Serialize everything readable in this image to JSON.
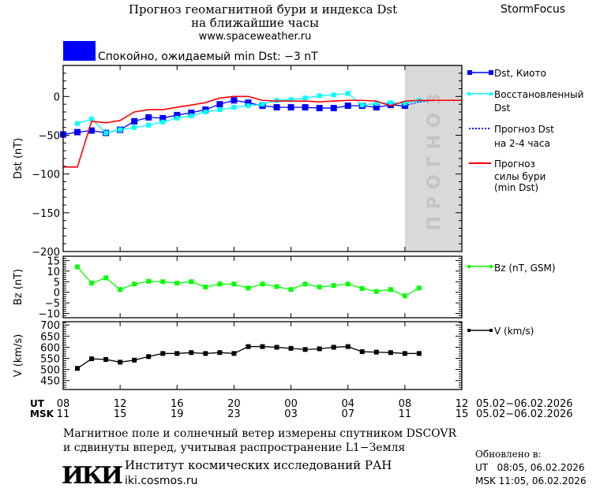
{
  "header": {
    "title_line1": "Прогноз геомагнитной бури и индекса Dst",
    "title_line2": "на ближайшие часы",
    "site": "www.spaceweather.ru",
    "brand": "StormFocus",
    "status_text": "Спокойно, ожидаемый min Dst: −3 nT",
    "status_color": "#0000ff"
  },
  "legend": {
    "dst_kyoto": "Dst, Киото",
    "reconstructed_1": "Восстановленный",
    "reconstructed_2": "Dst",
    "forecast_1": "Прогноз Dst",
    "forecast_2": "на 2-4 часа",
    "storm_1": "Прогноз",
    "storm_2": "силы бури",
    "storm_3": "(min Dst)",
    "bz": "Bz (nT, GSM)",
    "v": "V (km/s)"
  },
  "forecast_zone_label": "ПРОГНОЗ",
  "x_axis": {
    "ut_label": "UT",
    "msk_label": "MSK",
    "ut_ticks": [
      "08",
      "12",
      "16",
      "20",
      "00",
      "04",
      "08",
      "12"
    ],
    "msk_ticks": [
      "11",
      "15",
      "19",
      "23",
      "03",
      "07",
      "11",
      "15"
    ],
    "ut_range": "05.02−06.02.2026",
    "msk_range": "05.02−06.02.2026"
  },
  "footer": {
    "note_line1": "Магнитное поле и солнечный ветер измерены спутником DSCOVR",
    "note_line2": "и сдвинуты вперед, учитывая распространение L1−Земля",
    "institute": "Институт космических исследований РАН",
    "institute_url": "iki.cosmos.ru",
    "logo_text": "ИКИ",
    "updated_label": "Обновлено в:",
    "updated_ut": "UT   08:05, 06.02.2026",
    "updated_msk": "MSK 11:05, 06.02.2026"
  },
  "chart_data": [
    {
      "type": "line",
      "ylabel": "Dst (nT)",
      "ylim": [
        -200,
        40
      ],
      "yticks": [
        "0",
        "−50",
        "−100",
        "−150",
        "−200"
      ],
      "x_unit": "hours from 05.02 08 UT",
      "xlim": [
        0,
        28
      ],
      "forecast_zone": [
        24,
        28
      ],
      "series": [
        {
          "name": "Dst, Киото",
          "color": "#0000ff",
          "marker": "square-large",
          "x": [
            0,
            1,
            2,
            3,
            4,
            5,
            6,
            7,
            8,
            9,
            10,
            11,
            12,
            13,
            14,
            15,
            16,
            17,
            18,
            19,
            20,
            21,
            22,
            23,
            24
          ],
          "y": [
            -49,
            -46,
            -44,
            -47,
            -43,
            -32,
            -27,
            -28,
            -24,
            -21,
            -17,
            -10,
            -5,
            -8,
            -12,
            -14,
            -14,
            -14,
            -15,
            -15,
            -12,
            -12,
            -14,
            -11,
            -12
          ]
        },
        {
          "name": "Восстановленный Dst",
          "color": "#00ffff",
          "marker": "square-small",
          "x": [
            1,
            2,
            3,
            4,
            5,
            6,
            7,
            8,
            9,
            10,
            11,
            12,
            13,
            14,
            15,
            16,
            17,
            18,
            19,
            20,
            21,
            22,
            23,
            24,
            25
          ],
          "y": [
            -35,
            -29,
            -47,
            -43,
            -40,
            -37,
            -33,
            -28,
            -25,
            -20,
            -17,
            -14,
            -12,
            -10,
            -5,
            -4,
            -2,
            1,
            2,
            4,
            -11,
            -9,
            -8,
            -9,
            -5
          ]
        },
        {
          "name": "Прогноз Dst на 2-4 часа",
          "color": "#0000ff",
          "style": "dotted",
          "x": [
            24,
            25,
            26,
            27.5
          ],
          "y": [
            -12,
            -7,
            -5,
            -5
          ]
        },
        {
          "name": "Прогноз силы бури (min Dst)",
          "color": "#ff0000",
          "x": [
            0,
            1,
            2,
            3,
            4,
            5,
            6,
            7,
            8,
            9,
            10,
            11,
            12,
            13,
            14,
            15,
            16,
            17,
            18,
            19,
            20,
            21,
            22,
            23,
            24,
            25,
            26,
            27,
            28
          ],
          "y": [
            -91,
            -91,
            -32,
            -34,
            -31,
            -20,
            -17,
            -17,
            -14,
            -11,
            -8,
            -2,
            0,
            0,
            -5,
            -6,
            -6,
            -6,
            -7,
            -6,
            -5,
            -5,
            -6,
            -12,
            -6,
            -5,
            -5,
            -5,
            -5
          ]
        }
      ]
    },
    {
      "type": "line",
      "ylabel": "Bz (nT)",
      "ylim": [
        -12,
        17
      ],
      "yticks": [
        "15",
        "10",
        "5",
        "0",
        "−5",
        "−10"
      ],
      "series": [
        {
          "name": "Bz (nT, GSM)",
          "color": "#00ff00",
          "x": [
            1,
            2,
            3,
            4,
            5,
            6,
            7,
            8,
            9,
            10,
            11,
            12,
            13,
            14,
            15,
            16,
            17,
            18,
            19,
            20,
            21,
            22,
            23,
            24,
            25
          ],
          "y": [
            12,
            4.3,
            6.8,
            1.3,
            3.9,
            5.2,
            5,
            4.3,
            5,
            2.5,
            3.9,
            3.9,
            2,
            3.9,
            2.7,
            1.3,
            3.9,
            2.5,
            3.2,
            3.9,
            1.8,
            0.4,
            1.3,
            -1.7,
            2
          ]
        }
      ]
    },
    {
      "type": "line",
      "ylabel": "V (km/s)",
      "ylim": [
        410,
        715
      ],
      "yticks": [
        "700",
        "650",
        "600",
        "550",
        "500",
        "450"
      ],
      "series": [
        {
          "name": "V (km/s)",
          "color": "#000000",
          "x": [
            1,
            2,
            3,
            4,
            5,
            6,
            7,
            8,
            9,
            10,
            11,
            12,
            13,
            14,
            15,
            16,
            17,
            18,
            19,
            20,
            21,
            22,
            23,
            24,
            25
          ],
          "y": [
            505,
            548,
            545,
            533,
            542,
            558,
            572,
            572,
            576,
            572,
            576,
            572,
            603,
            603,
            600,
            595,
            590,
            593,
            600,
            603,
            580,
            578,
            576,
            572,
            572
          ]
        }
      ]
    }
  ]
}
